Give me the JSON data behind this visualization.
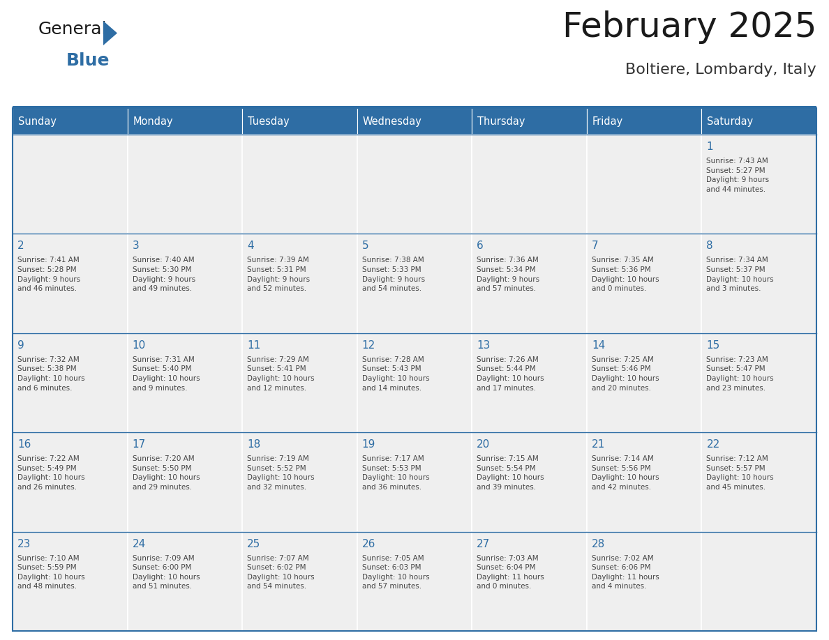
{
  "title": "February 2025",
  "subtitle": "Boltiere, Lombardy, Italy",
  "header_bg_color": "#2E6DA4",
  "header_text_color": "#FFFFFF",
  "cell_bg_color": "#EFEFEF",
  "day_number_color": "#2E6DA4",
  "cell_text_color": "#444444",
  "title_color": "#1a1a1a",
  "subtitle_color": "#333333",
  "logo_general_color": "#1a1a1a",
  "logo_blue_color": "#2E6DA4",
  "logo_triangle_color": "#2E6DA4",
  "days_of_week": [
    "Sunday",
    "Monday",
    "Tuesday",
    "Wednesday",
    "Thursday",
    "Friday",
    "Saturday"
  ],
  "weeks": [
    [
      {
        "day": null,
        "info": null
      },
      {
        "day": null,
        "info": null
      },
      {
        "day": null,
        "info": null
      },
      {
        "day": null,
        "info": null
      },
      {
        "day": null,
        "info": null
      },
      {
        "day": null,
        "info": null
      },
      {
        "day": 1,
        "info": "Sunrise: 7:43 AM\nSunset: 5:27 PM\nDaylight: 9 hours\nand 44 minutes."
      }
    ],
    [
      {
        "day": 2,
        "info": "Sunrise: 7:41 AM\nSunset: 5:28 PM\nDaylight: 9 hours\nand 46 minutes."
      },
      {
        "day": 3,
        "info": "Sunrise: 7:40 AM\nSunset: 5:30 PM\nDaylight: 9 hours\nand 49 minutes."
      },
      {
        "day": 4,
        "info": "Sunrise: 7:39 AM\nSunset: 5:31 PM\nDaylight: 9 hours\nand 52 minutes."
      },
      {
        "day": 5,
        "info": "Sunrise: 7:38 AM\nSunset: 5:33 PM\nDaylight: 9 hours\nand 54 minutes."
      },
      {
        "day": 6,
        "info": "Sunrise: 7:36 AM\nSunset: 5:34 PM\nDaylight: 9 hours\nand 57 minutes."
      },
      {
        "day": 7,
        "info": "Sunrise: 7:35 AM\nSunset: 5:36 PM\nDaylight: 10 hours\nand 0 minutes."
      },
      {
        "day": 8,
        "info": "Sunrise: 7:34 AM\nSunset: 5:37 PM\nDaylight: 10 hours\nand 3 minutes."
      }
    ],
    [
      {
        "day": 9,
        "info": "Sunrise: 7:32 AM\nSunset: 5:38 PM\nDaylight: 10 hours\nand 6 minutes."
      },
      {
        "day": 10,
        "info": "Sunrise: 7:31 AM\nSunset: 5:40 PM\nDaylight: 10 hours\nand 9 minutes."
      },
      {
        "day": 11,
        "info": "Sunrise: 7:29 AM\nSunset: 5:41 PM\nDaylight: 10 hours\nand 12 minutes."
      },
      {
        "day": 12,
        "info": "Sunrise: 7:28 AM\nSunset: 5:43 PM\nDaylight: 10 hours\nand 14 minutes."
      },
      {
        "day": 13,
        "info": "Sunrise: 7:26 AM\nSunset: 5:44 PM\nDaylight: 10 hours\nand 17 minutes."
      },
      {
        "day": 14,
        "info": "Sunrise: 7:25 AM\nSunset: 5:46 PM\nDaylight: 10 hours\nand 20 minutes."
      },
      {
        "day": 15,
        "info": "Sunrise: 7:23 AM\nSunset: 5:47 PM\nDaylight: 10 hours\nand 23 minutes."
      }
    ],
    [
      {
        "day": 16,
        "info": "Sunrise: 7:22 AM\nSunset: 5:49 PM\nDaylight: 10 hours\nand 26 minutes."
      },
      {
        "day": 17,
        "info": "Sunrise: 7:20 AM\nSunset: 5:50 PM\nDaylight: 10 hours\nand 29 minutes."
      },
      {
        "day": 18,
        "info": "Sunrise: 7:19 AM\nSunset: 5:52 PM\nDaylight: 10 hours\nand 32 minutes."
      },
      {
        "day": 19,
        "info": "Sunrise: 7:17 AM\nSunset: 5:53 PM\nDaylight: 10 hours\nand 36 minutes."
      },
      {
        "day": 20,
        "info": "Sunrise: 7:15 AM\nSunset: 5:54 PM\nDaylight: 10 hours\nand 39 minutes."
      },
      {
        "day": 21,
        "info": "Sunrise: 7:14 AM\nSunset: 5:56 PM\nDaylight: 10 hours\nand 42 minutes."
      },
      {
        "day": 22,
        "info": "Sunrise: 7:12 AM\nSunset: 5:57 PM\nDaylight: 10 hours\nand 45 minutes."
      }
    ],
    [
      {
        "day": 23,
        "info": "Sunrise: 7:10 AM\nSunset: 5:59 PM\nDaylight: 10 hours\nand 48 minutes."
      },
      {
        "day": 24,
        "info": "Sunrise: 7:09 AM\nSunset: 6:00 PM\nDaylight: 10 hours\nand 51 minutes."
      },
      {
        "day": 25,
        "info": "Sunrise: 7:07 AM\nSunset: 6:02 PM\nDaylight: 10 hours\nand 54 minutes."
      },
      {
        "day": 26,
        "info": "Sunrise: 7:05 AM\nSunset: 6:03 PM\nDaylight: 10 hours\nand 57 minutes."
      },
      {
        "day": 27,
        "info": "Sunrise: 7:03 AM\nSunset: 6:04 PM\nDaylight: 11 hours\nand 0 minutes."
      },
      {
        "day": 28,
        "info": "Sunrise: 7:02 AM\nSunset: 6:06 PM\nDaylight: 11 hours\nand 4 minutes."
      },
      {
        "day": null,
        "info": null
      }
    ]
  ],
  "fig_width": 11.88,
  "fig_height": 9.18,
  "dpi": 100
}
